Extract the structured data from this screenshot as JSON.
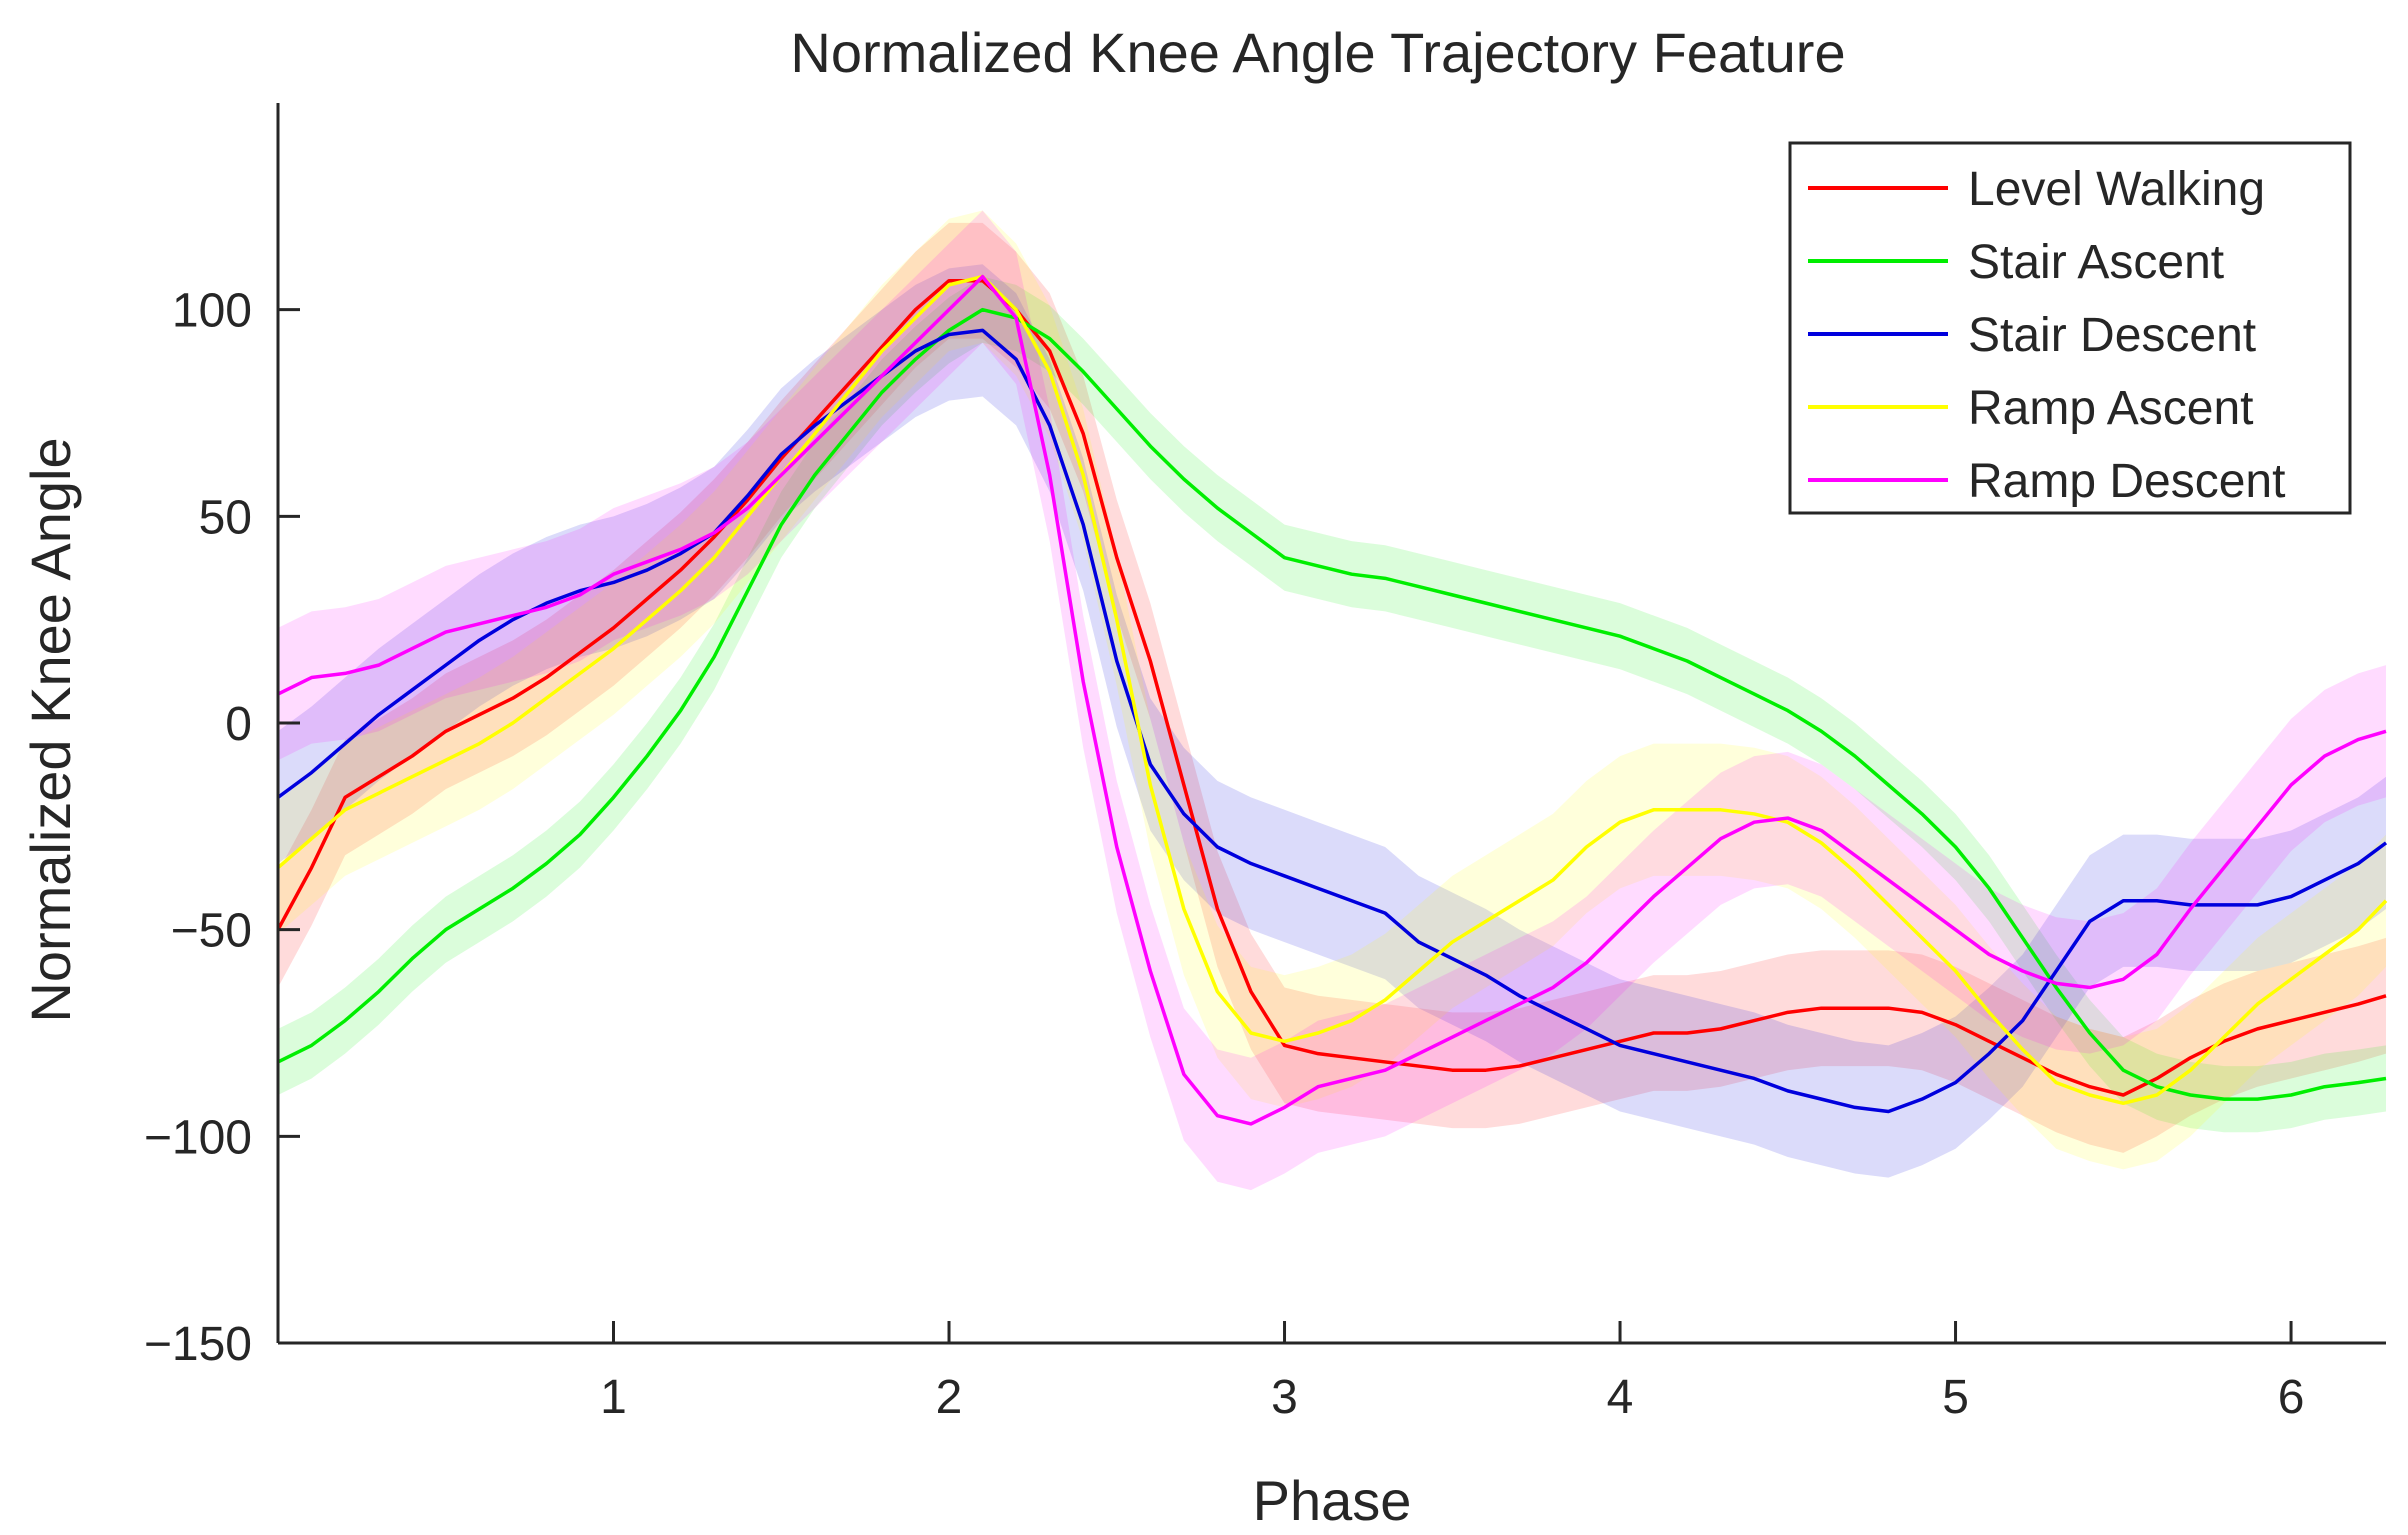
{
  "chart_data": {
    "type": "line",
    "title": "Normalized Knee Angle Trajectory Feature",
    "xlabel": "Phase",
    "ylabel": "Normalized Knee Angle",
    "xlim": [
      0,
      6.283
    ],
    "ylim": [
      -150,
      150
    ],
    "xticks": [
      1,
      2,
      3,
      4,
      5,
      6
    ],
    "xtick_labels": [
      "1",
      "2",
      "3",
      "4",
      "5",
      "6"
    ],
    "yticks": [
      -150,
      -100,
      -50,
      0,
      50,
      100
    ],
    "ytick_labels": [
      "−150",
      "−100",
      "−50",
      "0",
      "50",
      "100"
    ],
    "legend_position": "top-right",
    "x": [
      0.0,
      0.1,
      0.2,
      0.3,
      0.4,
      0.5,
      0.6,
      0.7,
      0.8,
      0.9,
      1.0,
      1.1,
      1.2,
      1.3,
      1.4,
      1.5,
      1.6,
      1.7,
      1.8,
      1.9,
      2.0,
      2.1,
      2.2,
      2.3,
      2.4,
      2.5,
      2.6,
      2.7,
      2.8,
      2.9,
      3.0,
      3.1,
      3.2,
      3.3,
      3.4,
      3.5,
      3.6,
      3.7,
      3.8,
      3.9,
      4.0,
      4.1,
      4.2,
      4.3,
      4.4,
      4.5,
      4.6,
      4.7,
      4.8,
      4.9,
      5.0,
      5.1,
      5.2,
      5.3,
      5.4,
      5.5,
      5.6,
      5.7,
      5.8,
      5.9,
      6.0,
      6.1,
      6.2,
      6.283
    ],
    "series": [
      {
        "name": "Level Walking",
        "color": "#ff0000",
        "band_width": 14,
        "values": [
          -50,
          -35,
          -18,
          -13,
          -8,
          -2,
          2,
          6,
          11,
          17,
          23,
          30,
          37,
          45,
          54,
          64,
          73,
          82,
          91,
          100,
          107,
          107,
          100,
          90,
          70,
          40,
          15,
          -15,
          -45,
          -65,
          -78,
          -80,
          -81,
          -82,
          -83,
          -84,
          -84,
          -83,
          -81,
          -79,
          -77,
          -75,
          -75,
          -74,
          -72,
          -70,
          -69,
          -69,
          -69,
          -70,
          -73,
          -77,
          -81,
          -85,
          -88,
          -90,
          -86,
          -81,
          -77,
          -74,
          -72,
          -70,
          -68,
          -66
        ]
      },
      {
        "name": "Stair Ascent",
        "color": "#00ee00",
        "band_width": 8,
        "values": [
          -82,
          -78,
          -72,
          -65,
          -57,
          -50,
          -45,
          -40,
          -34,
          -27,
          -18,
          -8,
          3,
          16,
          32,
          48,
          60,
          70,
          80,
          88,
          95,
          100,
          98,
          93,
          85,
          76,
          67,
          59,
          52,
          46,
          40,
          38,
          36,
          35,
          33,
          31,
          29,
          27,
          25,
          23,
          21,
          18,
          15,
          11,
          7,
          3,
          -2,
          -8,
          -15,
          -22,
          -30,
          -40,
          -52,
          -64,
          -75,
          -84,
          -88,
          -90,
          -91,
          -91,
          -90,
          -88,
          -87,
          -86
        ]
      },
      {
        "name": "Stair Descent",
        "color": "#0000dd",
        "band_width": 16,
        "values": [
          -18,
          -12,
          -5,
          2,
          8,
          14,
          20,
          25,
          29,
          32,
          34,
          37,
          41,
          46,
          55,
          65,
          72,
          78,
          84,
          90,
          94,
          95,
          88,
          72,
          48,
          15,
          -10,
          -22,
          -30,
          -34,
          -37,
          -40,
          -43,
          -46,
          -53,
          -57,
          -61,
          -66,
          -70,
          -74,
          -78,
          -80,
          -82,
          -84,
          -86,
          -89,
          -91,
          -93,
          -94,
          -91,
          -87,
          -80,
          -72,
          -60,
          -48,
          -43,
          -43,
          -44,
          -44,
          -44,
          -42,
          -38,
          -34,
          -29
        ]
      },
      {
        "name": "Ramp Ascent",
        "color": "#ffff00",
        "band_width": 16,
        "values": [
          -35,
          -28,
          -21,
          -17,
          -13,
          -9,
          -5,
          0,
          6,
          12,
          18,
          25,
          32,
          40,
          50,
          60,
          70,
          80,
          90,
          98,
          106,
          108,
          100,
          85,
          60,
          25,
          -15,
          -45,
          -65,
          -75,
          -77,
          -75,
          -72,
          -67,
          -60,
          -53,
          -48,
          -43,
          -38,
          -30,
          -24,
          -21,
          -21,
          -21,
          -22,
          -24,
          -29,
          -36,
          -44,
          -52,
          -60,
          -70,
          -79,
          -87,
          -90,
          -92,
          -90,
          -84,
          -76,
          -68,
          -62,
          -56,
          -50,
          -43
        ]
      },
      {
        "name": "Ramp Descent",
        "color": "#ff00ff",
        "band_width": 16,
        "values": [
          7,
          11,
          12,
          14,
          18,
          22,
          24,
          26,
          28,
          31,
          36,
          39,
          42,
          46,
          52,
          60,
          68,
          76,
          84,
          92,
          100,
          108,
          98,
          60,
          10,
          -30,
          -60,
          -85,
          -95,
          -97,
          -93,
          -88,
          -86,
          -84,
          -80,
          -76,
          -72,
          -68,
          -64,
          -58,
          -50,
          -42,
          -35,
          -28,
          -24,
          -23,
          -26,
          -32,
          -38,
          -44,
          -50,
          -56,
          -60,
          -63,
          -64,
          -62,
          -56,
          -45,
          -35,
          -25,
          -15,
          -8,
          -4,
          -2
        ]
      }
    ]
  }
}
